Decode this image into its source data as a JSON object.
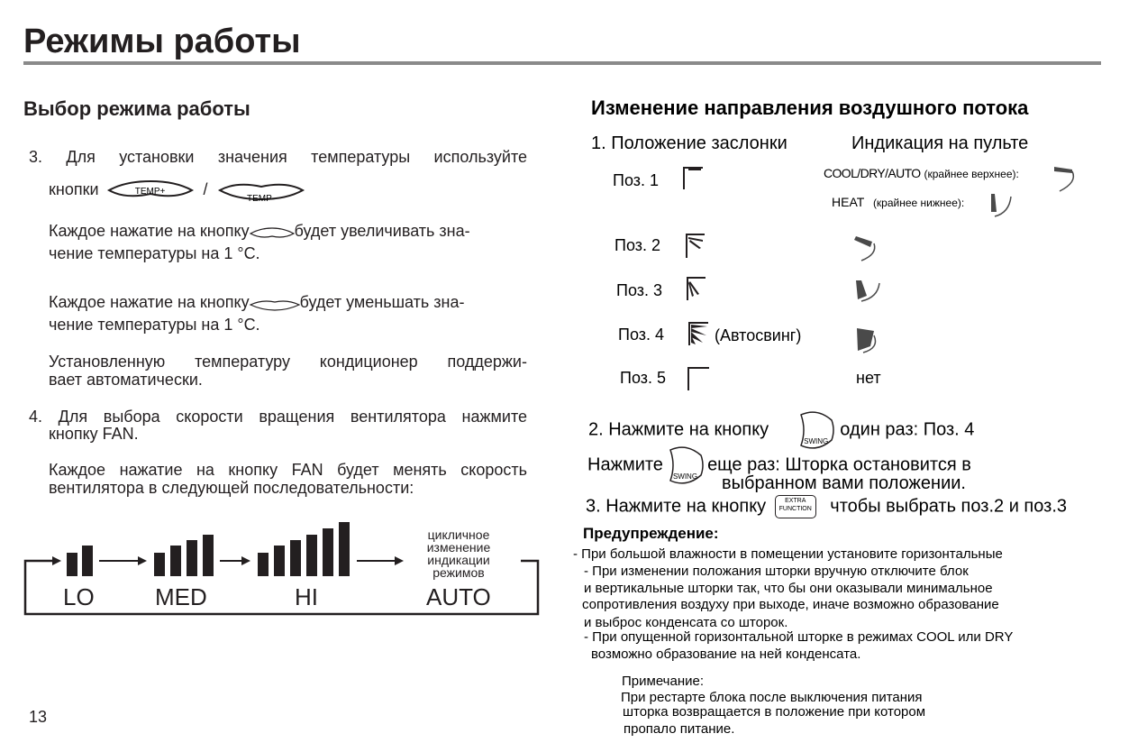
{
  "page_title": "Режимы работы",
  "page_number": "13",
  "left": {
    "heading": "Выбор режима работы",
    "step3_line1": "3. Для установки значения температуры  используйте",
    "step3_line2": "кнопки",
    "slash": "/",
    "temp_plus": "TEMP+",
    "temp_minus": "TEMP-",
    "inc_a": "Каждое нажатие на кнопку",
    "inc_b": "будет увеличивать зна-",
    "inc_c": "чение температуры на 1 °C.",
    "dec_a": "Каждое нажатие на кнопку",
    "dec_b": "будет уменьшать зна-",
    "dec_c": "чение температуры на 1 °C.",
    "keep_1": "Установленную температуру кондиционер поддержи-",
    "keep_2": "вает автоматически.",
    "step4_line1": "4. Для выбора скорости вращения вентилятора нажмите",
    "step4_line2": "кнопку FAN.",
    "fan_1": "Каждое нажатие на кнопку FAN будет менять скорость",
    "fan_2": "вентилятора в следующей последовательности:",
    "fan_speeds": [
      "LO",
      "MED",
      "HI",
      "AUTO"
    ],
    "cycle_note": [
      "цикличное",
      "изменение",
      "индикации",
      "режимов"
    ]
  },
  "right": {
    "heading": "Изменение направления воздушного потока",
    "col1": "1.  Положение заслонки",
    "col2": "Индикация на пульте",
    "cool_label": "COOL/DRY/AUTO",
    "cool_note": "(крайнее верхнее):",
    "heat_label": "HEAT",
    "heat_note": "(крайнее нижнее):",
    "positions": [
      "Поз. 1",
      "Поз. 2",
      "Поз. 3",
      "Поз. 4",
      "Поз. 5"
    ],
    "autoswing": "(Автосвинг)",
    "none": "нет",
    "step2_a": "2. Нажмите на кнопку",
    "step2_b": "один раз: Поз. 4",
    "press_a": "Нажмите",
    "press_b": "еще раз:  Шторка остановится в",
    "press_c": "выбранном вами положении.",
    "step3_a": "3. Нажмите на кнопку",
    "step3_b": "чтобы выбрать поз.2 и поз.3",
    "swing": "SWING",
    "extra_1": "EXTRA",
    "extra_2": "FUNCTION",
    "warning_title": "Предупреждение:",
    "warning_lines": [
      "- При большой влажности в помещении установите горизонтальные",
      "- При изменении положания шторки вручную отключите блок",
      "и вертикальные шторки так, что бы они оказывали минимальное",
      "сопротивления воздуху при выходе, иначе возможно образование",
      "и выброс конденсата со шторок.",
      "- При опущенной горизонтальной шторке в режимах COOL или DRY",
      "возможно образование на ней конденсата."
    ],
    "note_title": "Примечание:",
    "note_lines": [
      "При рестарте блока после выключения питания",
      "шторка возвращается в положение при котором",
      "пропало питание."
    ]
  }
}
